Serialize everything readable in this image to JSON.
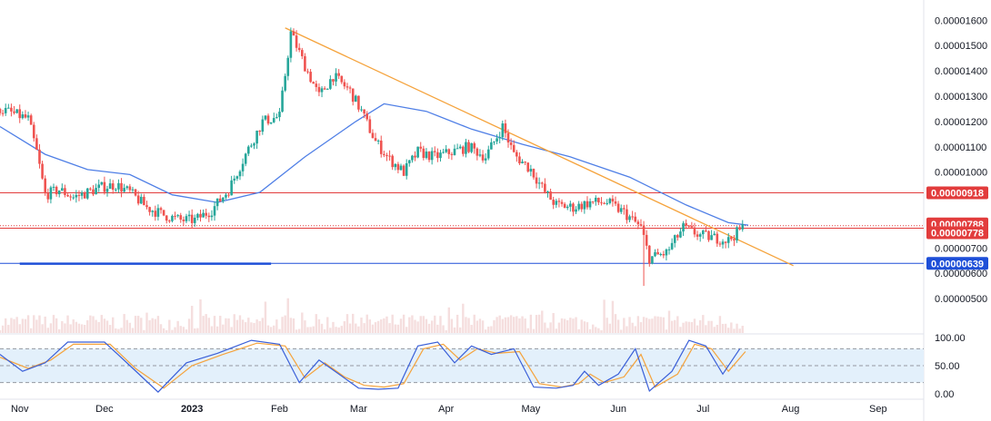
{
  "colors": {
    "up": "#26a69a",
    "down": "#ef5350",
    "ma": "#4f7fe6",
    "trend": "#f5a33c",
    "resistance": "#e23c3c",
    "support": "#1e4fd8",
    "stoch_k": "#3a5fd8",
    "stoch_d": "#f5a33c",
    "band_fill": "#e3f0fb"
  },
  "chart_data": {
    "type": "candlestick",
    "price_axis": {
      "min": 4.5e-06,
      "max": 1.63e-05,
      "ticks": [
        "0.00001600",
        "0.00001500",
        "0.00001400",
        "0.00001300",
        "0.00001200",
        "0.00001100",
        "0.00001000",
        "0.00000700",
        "0.00000600",
        "0.00000500"
      ]
    },
    "time_axis": {
      "labels": [
        {
          "text": "Nov",
          "date": "2022-11-01"
        },
        {
          "text": "Dec",
          "date": "2022-12-01"
        },
        {
          "text": "2023",
          "date": "2023-01-01"
        },
        {
          "text": "Feb",
          "date": "2023-02-01"
        },
        {
          "text": "Mar",
          "date": "2023-03-01"
        },
        {
          "text": "Apr",
          "date": "2023-04-01"
        },
        {
          "text": "May",
          "date": "2023-05-01"
        },
        {
          "text": "Jun",
          "date": "2023-06-01"
        },
        {
          "text": "Jul",
          "date": "2023-07-01"
        },
        {
          "text": "Aug",
          "date": "2023-08-01"
        },
        {
          "text": "Sep",
          "date": "2023-09-01"
        }
      ]
    },
    "price_path": [
      [
        "2022-10-25",
        1.25e-05
      ],
      [
        "2022-10-30",
        1.23e-05
      ],
      [
        "2022-11-04",
        1.21e-05
      ],
      [
        "2022-11-07",
        1.08e-05
      ],
      [
        "2022-11-10",
        9.1e-06
      ],
      [
        "2022-11-15",
        9.3e-06
      ],
      [
        "2022-11-20",
        9e-06
      ],
      [
        "2022-11-25",
        9.2e-06
      ],
      [
        "2022-11-30",
        9.4e-06
      ],
      [
        "2022-12-05",
        9.5e-06
      ],
      [
        "2022-12-10",
        9.2e-06
      ],
      [
        "2022-12-16",
        8.6e-06
      ],
      [
        "2022-12-22",
        8.3e-06
      ],
      [
        "2022-12-28",
        8.1e-06
      ],
      [
        "2023-01-02",
        8.1e-06
      ],
      [
        "2023-01-08",
        8.5e-06
      ],
      [
        "2023-01-14",
        9.3e-06
      ],
      [
        "2023-01-20",
        1.07e-05
      ],
      [
        "2023-01-26",
        1.2e-05
      ],
      [
        "2023-02-01",
        1.22e-05
      ],
      [
        "2023-02-05",
        1.55e-05
      ],
      [
        "2023-02-10",
        1.42e-05
      ],
      [
        "2023-02-15",
        1.3e-05
      ],
      [
        "2023-02-20",
        1.38e-05
      ],
      [
        "2023-02-26",
        1.32e-05
      ],
      [
        "2023-03-02",
        1.24e-05
      ],
      [
        "2023-03-07",
        1.12e-05
      ],
      [
        "2023-03-12",
        1.05e-05
      ],
      [
        "2023-03-17",
        1e-05
      ],
      [
        "2023-03-22",
        1.08e-05
      ],
      [
        "2023-03-28",
        1.06e-05
      ],
      [
        "2023-04-03",
        1.08e-05
      ],
      [
        "2023-04-09",
        1.1e-05
      ],
      [
        "2023-04-15",
        1.06e-05
      ],
      [
        "2023-04-21",
        1.18e-05
      ],
      [
        "2023-04-25",
        1.07e-05
      ],
      [
        "2023-05-01",
        1.01e-05
      ],
      [
        "2023-05-06",
        9.2e-06
      ],
      [
        "2023-05-10",
        8.7e-06
      ],
      [
        "2023-05-16",
        8.6e-06
      ],
      [
        "2023-05-22",
        8.8e-06
      ],
      [
        "2023-05-28",
        8.8e-06
      ],
      [
        "2023-06-03",
        8.4e-06
      ],
      [
        "2023-06-09",
        7.8e-06
      ],
      [
        "2023-06-12",
        6.6e-06
      ],
      [
        "2023-06-18",
        6.8e-06
      ],
      [
        "2023-06-24",
        7.8e-06
      ],
      [
        "2023-06-30",
        7.5e-06
      ],
      [
        "2023-07-05",
        7.4e-06
      ],
      [
        "2023-07-10",
        7.3e-06
      ],
      [
        "2023-07-15",
        7.8e-06
      ]
    ],
    "moving_average": [
      [
        "2022-10-25",
        1.18e-05
      ],
      [
        "2022-11-10",
        1.07e-05
      ],
      [
        "2022-11-25",
        1.01e-05
      ],
      [
        "2022-12-10",
        9.9e-06
      ],
      [
        "2022-12-25",
        9.1e-06
      ],
      [
        "2023-01-10",
        8.8e-06
      ],
      [
        "2023-01-25",
        9.2e-06
      ],
      [
        "2023-02-10",
        1.06e-05
      ],
      [
        "2023-02-28",
        1.2e-05
      ],
      [
        "2023-03-10",
        1.27e-05
      ],
      [
        "2023-03-25",
        1.24e-05
      ],
      [
        "2023-04-10",
        1.17e-05
      ],
      [
        "2023-04-28",
        1.11e-05
      ],
      [
        "2023-05-15",
        1.06e-05
      ],
      [
        "2023-06-05",
        9.8e-06
      ],
      [
        "2023-06-25",
        8.7e-06
      ],
      [
        "2023-07-10",
        8e-06
      ],
      [
        "2023-07-17",
        7.9e-06
      ]
    ],
    "trendline": [
      [
        "2023-02-03",
        1.57e-05
      ],
      [
        "2023-08-02",
        6.3e-06
      ]
    ],
    "horizontal_levels": [
      {
        "label": "0.00000918",
        "value": 9.18e-06,
        "role": "resistance"
      },
      {
        "label": "0.00000788",
        "value": 7.88e-06,
        "role": "dotted"
      },
      {
        "label": "0.00000778",
        "value": 7.78e-06,
        "role": "resistance"
      },
      {
        "label": "0.00000639",
        "value": 6.39e-06,
        "role": "support"
      }
    ],
    "support_segment": {
      "start": "2022-11-01",
      "end": "2023-01-29",
      "value": 6.38e-06
    },
    "oscillator": {
      "type": "stochastic",
      "ticks": [
        "100.00",
        "50.00",
        "0.00"
      ],
      "band": [
        20,
        80
      ],
      "k": [
        [
          "2022-10-25",
          70
        ],
        [
          "2022-11-02",
          40
        ],
        [
          "2022-11-10",
          55
        ],
        [
          "2022-11-18",
          92
        ],
        [
          "2022-12-01",
          92
        ],
        [
          "2022-12-10",
          50
        ],
        [
          "2022-12-20",
          3
        ],
        [
          "2022-12-30",
          55
        ],
        [
          "2023-01-10",
          72
        ],
        [
          "2023-01-22",
          95
        ],
        [
          "2023-02-01",
          88
        ],
        [
          "2023-02-08",
          20
        ],
        [
          "2023-02-15",
          60
        ],
        [
          "2023-02-22",
          35
        ],
        [
          "2023-03-01",
          10
        ],
        [
          "2023-03-08",
          8
        ],
        [
          "2023-03-15",
          10
        ],
        [
          "2023-03-22",
          85
        ],
        [
          "2023-03-29",
          92
        ],
        [
          "2023-04-04",
          55
        ],
        [
          "2023-04-10",
          85
        ],
        [
          "2023-04-17",
          70
        ],
        [
          "2023-04-25",
          80
        ],
        [
          "2023-05-02",
          12
        ],
        [
          "2023-05-10",
          10
        ],
        [
          "2023-05-16",
          15
        ],
        [
          "2023-05-20",
          40
        ],
        [
          "2023-05-25",
          15
        ],
        [
          "2023-06-01",
          35
        ],
        [
          "2023-06-07",
          80
        ],
        [
          "2023-06-12",
          5
        ],
        [
          "2023-06-20",
          40
        ],
        [
          "2023-06-26",
          95
        ],
        [
          "2023-07-02",
          85
        ],
        [
          "2023-07-08",
          35
        ],
        [
          "2023-07-14",
          80
        ]
      ],
      "d": [
        [
          "2022-10-25",
          65
        ],
        [
          "2022-11-04",
          45
        ],
        [
          "2022-11-12",
          60
        ],
        [
          "2022-11-20",
          88
        ],
        [
          "2022-12-03",
          88
        ],
        [
          "2022-12-12",
          45
        ],
        [
          "2022-12-22",
          10
        ],
        [
          "2023-01-01",
          50
        ],
        [
          "2023-01-12",
          70
        ],
        [
          "2023-01-24",
          90
        ],
        [
          "2023-02-03",
          85
        ],
        [
          "2023-02-10",
          28
        ],
        [
          "2023-02-17",
          55
        ],
        [
          "2023-02-24",
          30
        ],
        [
          "2023-03-03",
          15
        ],
        [
          "2023-03-10",
          12
        ],
        [
          "2023-03-17",
          18
        ],
        [
          "2023-03-24",
          80
        ],
        [
          "2023-03-31",
          88
        ],
        [
          "2023-04-06",
          60
        ],
        [
          "2023-04-12",
          80
        ],
        [
          "2023-04-19",
          72
        ],
        [
          "2023-04-27",
          75
        ],
        [
          "2023-05-04",
          18
        ],
        [
          "2023-05-12",
          12
        ],
        [
          "2023-05-18",
          18
        ],
        [
          "2023-05-22",
          35
        ],
        [
          "2023-05-27",
          20
        ],
        [
          "2023-06-03",
          30
        ],
        [
          "2023-06-09",
          70
        ],
        [
          "2023-06-14",
          12
        ],
        [
          "2023-06-22",
          35
        ],
        [
          "2023-06-28",
          88
        ],
        [
          "2023-07-04",
          80
        ],
        [
          "2023-07-10",
          40
        ],
        [
          "2023-07-16",
          75
        ]
      ]
    }
  }
}
